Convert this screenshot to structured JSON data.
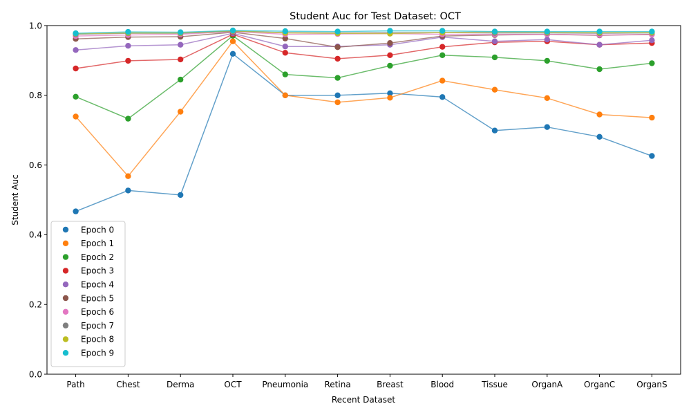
{
  "chart_data": {
    "type": "line",
    "title": "Student Auc for Test Dataset: OCT",
    "xlabel": "Recent Dataset",
    "ylabel": "Student Auc",
    "categories": [
      "Path",
      "Chest",
      "Derma",
      "OCT",
      "Pneumonia",
      "Retina",
      "Breast",
      "Blood",
      "Tissue",
      "OrganA",
      "OrganC",
      "OrganS"
    ],
    "ylim": [
      0.0,
      1.0
    ],
    "yticks": [
      "0.0",
      "0.2",
      "0.4",
      "0.6",
      "0.8",
      "1.0"
    ],
    "grid": false,
    "legend_position": "lower-left",
    "series": [
      {
        "name": "Epoch 0",
        "color": "#1f77b4",
        "values": [
          0.467,
          0.527,
          0.514,
          0.919,
          0.8,
          0.8,
          0.806,
          0.795,
          0.699,
          0.709,
          0.681,
          0.626
        ]
      },
      {
        "name": "Epoch 1",
        "color": "#ff7f0e",
        "values": [
          0.739,
          0.568,
          0.753,
          0.955,
          0.8,
          0.78,
          0.793,
          0.842,
          0.816,
          0.792,
          0.745,
          0.736
        ]
      },
      {
        "name": "Epoch 2",
        "color": "#2ca02c",
        "values": [
          0.796,
          0.733,
          0.845,
          0.971,
          0.86,
          0.85,
          0.885,
          0.915,
          0.909,
          0.899,
          0.875,
          0.892
        ]
      },
      {
        "name": "Epoch 3",
        "color": "#d62728",
        "values": [
          0.877,
          0.899,
          0.903,
          0.975,
          0.922,
          0.905,
          0.915,
          0.939,
          0.952,
          0.955,
          0.945,
          0.95
        ]
      },
      {
        "name": "Epoch 4",
        "color": "#9467bd",
        "values": [
          0.93,
          0.942,
          0.945,
          0.978,
          0.94,
          0.94,
          0.945,
          0.967,
          0.955,
          0.96,
          0.945,
          0.958
        ]
      },
      {
        "name": "Epoch 5",
        "color": "#8c564b",
        "values": [
          0.962,
          0.967,
          0.968,
          0.981,
          0.963,
          0.938,
          0.95,
          0.97,
          0.973,
          0.975,
          0.972,
          0.975
        ]
      },
      {
        "name": "Epoch 6",
        "color": "#e377c2",
        "values": [
          0.97,
          0.973,
          0.975,
          0.983,
          0.975,
          0.976,
          0.977,
          0.975,
          0.975,
          0.975,
          0.973,
          0.974
        ]
      },
      {
        "name": "Epoch 7",
        "color": "#7f7f7f",
        "values": [
          0.975,
          0.978,
          0.978,
          0.984,
          0.98,
          0.979,
          0.98,
          0.98,
          0.979,
          0.979,
          0.978,
          0.979
        ]
      },
      {
        "name": "Epoch 8",
        "color": "#bcbd22",
        "values": [
          0.977,
          0.979,
          0.979,
          0.985,
          0.979,
          0.978,
          0.977,
          0.98,
          0.982,
          0.981,
          0.98,
          0.98
        ]
      },
      {
        "name": "Epoch 9",
        "color": "#17becf",
        "values": [
          0.978,
          0.982,
          0.981,
          0.986,
          0.984,
          0.983,
          0.985,
          0.985,
          0.983,
          0.983,
          0.983,
          0.983
        ]
      }
    ]
  }
}
